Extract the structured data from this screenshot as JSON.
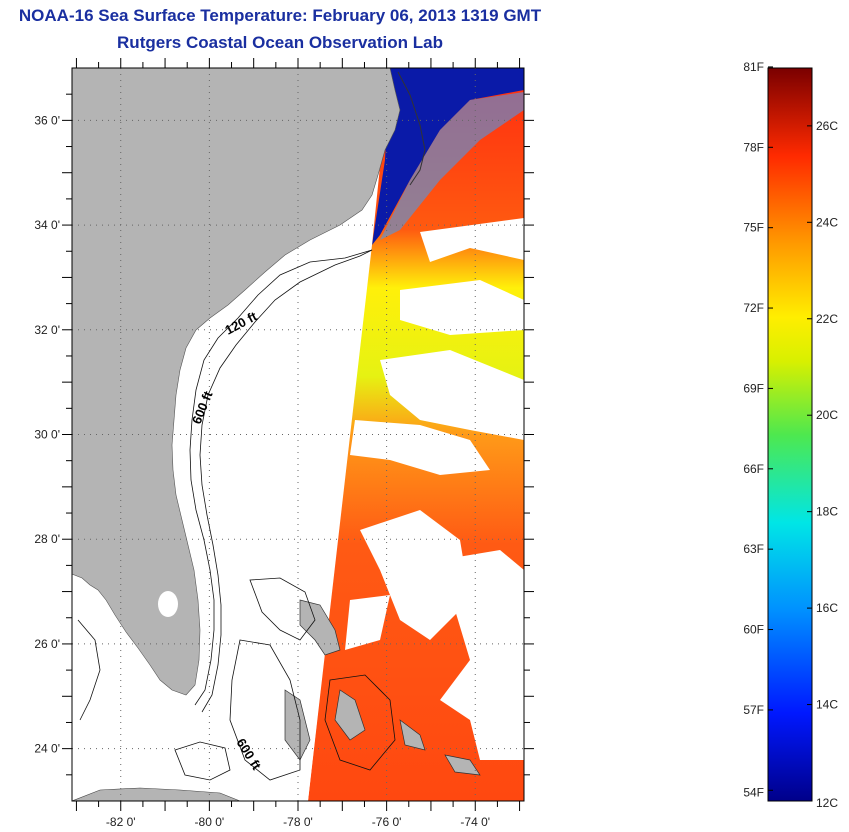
{
  "header": {
    "title": "NOAA-16 Sea Surface Temperature:  February 06, 2013 1319 GMT",
    "subtitle": "Rutgers Coastal Ocean Observation Lab"
  },
  "map": {
    "lat_labels": [
      "36 0'",
      "34 0'",
      "32 0'",
      "30 0'",
      "28 0'",
      "26 0'",
      "24 0'"
    ],
    "lon_labels": [
      "-82 0'",
      "-80 0'",
      "-78 0'",
      "-76 0'",
      "-74 0'"
    ],
    "lat_range": [
      23,
      37
    ],
    "lon_range": [
      -83.1,
      -72.9
    ],
    "contours": {
      "label_120": "120 ft",
      "label_600_north": "600 ft",
      "label_600_south": "600 ft"
    },
    "colors": {
      "land": "#b4b4b4",
      "no_data": "#ffffff",
      "cold_water": "#0a1aa8",
      "warm_water": "#ff4a14",
      "mid_water": "#f2f20a"
    }
  },
  "colorbar": {
    "fahrenheit_labels": [
      "81F",
      "78F",
      "75F",
      "72F",
      "69F",
      "66F",
      "63F",
      "60F",
      "57F",
      "54F"
    ],
    "celsius_labels": [
      "26C",
      "24C",
      "22C",
      "20C",
      "18C",
      "16C",
      "14C",
      "12C"
    ],
    "range_c": [
      12,
      27.2
    ]
  }
}
